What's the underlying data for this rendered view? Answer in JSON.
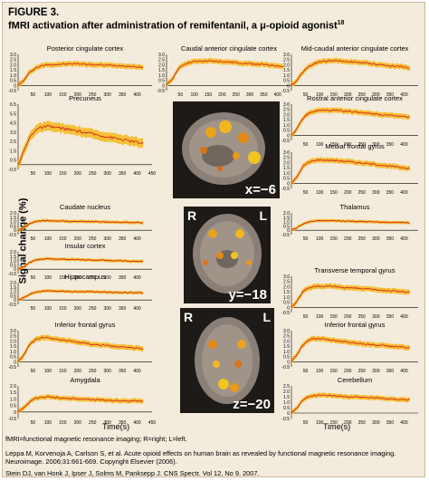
{
  "figure": {
    "label": "FIGURE 3.",
    "title": "fMRI activation after administration of remifentanil, a μ-opioid agonist",
    "title_superscript": "18"
  },
  "axis": {
    "ylabel": "Signal change (%)",
    "xlabel": "Time(s)"
  },
  "brain_slices": [
    {
      "coord": "x=−6",
      "left_label": "",
      "right_label": ""
    },
    {
      "coord": "y=−18",
      "left_label": "R",
      "right_label": "L"
    },
    {
      "coord": "z=−20",
      "left_label": "R",
      "right_label": "L"
    }
  ],
  "footer": {
    "abbrev": "fMRI=functional magnetic resonance imaging; R=right; L=left.",
    "citation1": "Leppa M, Korvenoja A, Carlson S, et al. Acute opioid effects on human brain as revealed by functional magnetic resonance imaging. Neuroimage. 2006;31:661-669. Copyright Elsevier (2006).",
    "citation2": "Stein DJ, van Honk J, Ipser J, Solms M, Panksepp J. CNS Spectr. Vol 12, No 9. 2007."
  },
  "colors": {
    "line": "#d42a1a",
    "band": "#f5b81c",
    "background": "#f3ebdc"
  },
  "chart_data": [
    {
      "type": "line",
      "title": "Posterior cingulate cortex",
      "xlim": [
        0,
        450
      ],
      "ylim": [
        -0.5,
        3.0
      ],
      "yticks": [
        "3.0",
        "2.5",
        "2.0",
        "1.5",
        "1.0",
        "0.5",
        "0",
        "-0.5"
      ],
      "xticks": [
        50,
        100,
        150,
        200,
        250,
        300,
        350,
        400
      ],
      "x": [
        0,
        20,
        40,
        60,
        80,
        100,
        150,
        200,
        250,
        300,
        350,
        400,
        420
      ],
      "y": [
        0.0,
        0.5,
        1.3,
        1.7,
        1.9,
        2.0,
        2.05,
        2.1,
        2.0,
        1.95,
        1.9,
        1.8,
        1.7
      ]
    },
    {
      "type": "line",
      "title": "Caudal anterior cingulate cortex",
      "xlim": [
        0,
        450
      ],
      "ylim": [
        -0.5,
        3.0
      ],
      "yticks": [
        "3.0",
        "2.5",
        "2.0",
        "1.5",
        "1.0",
        "0.5",
        "0",
        "-0.5"
      ],
      "xticks": [
        50,
        100,
        150,
        200,
        250,
        300,
        350,
        400
      ],
      "x": [
        0,
        20,
        40,
        60,
        80,
        100,
        150,
        200,
        250,
        300,
        350,
        400,
        420
      ],
      "y": [
        0.0,
        0.6,
        1.5,
        2.0,
        2.2,
        2.3,
        2.35,
        2.3,
        2.2,
        2.1,
        2.0,
        1.9,
        1.8
      ]
    },
    {
      "type": "line",
      "title": "Mid-caudal anterior cingulate cortex",
      "xlim": [
        0,
        450
      ],
      "ylim": [
        -0.5,
        3.0
      ],
      "yticks": [
        "3.0",
        "2.5",
        "2.0",
        "1.5",
        "1.0",
        "0.5",
        "0",
        "-0.5"
      ],
      "xticks": [
        50,
        100,
        150,
        200,
        250,
        300,
        350,
        400
      ],
      "x": [
        0,
        20,
        40,
        60,
        80,
        100,
        150,
        200,
        250,
        300,
        350,
        400,
        420
      ],
      "y": [
        0.0,
        0.5,
        1.3,
        1.8,
        2.1,
        2.3,
        2.4,
        2.3,
        2.2,
        2.05,
        1.9,
        1.8,
        1.6
      ]
    },
    {
      "type": "line",
      "title": "Precuneus",
      "xlim": [
        0,
        450
      ],
      "ylim": [
        -0.5,
        6.5
      ],
      "yticks": [
        "6.5",
        "6.0",
        "5.5",
        "5.0",
        "4.5",
        "4.0",
        "3.5",
        "3.0",
        "2.5",
        "2.0",
        "1.5",
        "1.0",
        "0.5",
        "0",
        "-0.5"
      ],
      "xticks": [
        50,
        100,
        150,
        200,
        250,
        300,
        350,
        400,
        450
      ],
      "x": [
        0,
        20,
        40,
        60,
        80,
        100,
        150,
        200,
        250,
        300,
        350,
        400,
        420
      ],
      "y": [
        0.0,
        1.5,
        3.0,
        3.8,
        4.0,
        4.1,
        3.9,
        3.6,
        3.3,
        3.0,
        2.7,
        2.4,
        2.3
      ]
    },
    {
      "type": "line",
      "title": "Rostral anterior cingulate cortex",
      "xlim": [
        0,
        450
      ],
      "ylim": [
        -0.5,
        3.0
      ],
      "yticks": [
        "3.0",
        "2.5",
        "2.0",
        "1.5",
        "1.0",
        "0.5",
        "0",
        "-0.5"
      ],
      "xticks": [
        50,
        100,
        150,
        200,
        250,
        300,
        350,
        400
      ],
      "x": [
        0,
        20,
        40,
        60,
        80,
        100,
        150,
        200,
        250,
        300,
        350,
        400,
        420
      ],
      "y": [
        0.0,
        0.6,
        1.6,
        2.1,
        2.3,
        2.4,
        2.4,
        2.3,
        2.2,
        2.05,
        1.9,
        1.8,
        1.7
      ]
    },
    {
      "type": "line",
      "title": "Medial frontal gyrus",
      "xlim": [
        0,
        450
      ],
      "ylim": [
        -0.5,
        3.0
      ],
      "yticks": [
        "3.0",
        "2.5",
        "2.0",
        "1.5",
        "1.0",
        "0.5",
        "0",
        "-0.5"
      ],
      "xticks": [
        50,
        100,
        150,
        200,
        250,
        300,
        350,
        400
      ],
      "x": [
        0,
        20,
        40,
        60,
        80,
        100,
        150,
        200,
        250,
        300,
        350,
        400,
        420
      ],
      "y": [
        0.0,
        0.6,
        1.6,
        2.0,
        2.2,
        2.25,
        2.2,
        2.1,
        1.95,
        1.8,
        1.65,
        1.5,
        1.4
      ]
    },
    {
      "type": "line",
      "title": "Caudate nucleus",
      "xlim": [
        0,
        450
      ],
      "ylim": [
        -0.5,
        2.0
      ],
      "yticks": [
        "2.0",
        "1.5",
        "1.0",
        "0.5",
        "0",
        "-0.5"
      ],
      "xticks": [
        50,
        100,
        150,
        200,
        250,
        300,
        350,
        400
      ],
      "x": [
        0,
        20,
        40,
        60,
        80,
        100,
        150,
        200,
        250,
        300,
        350,
        400,
        420
      ],
      "y": [
        0.0,
        0.3,
        0.8,
        1.0,
        1.1,
        1.1,
        1.05,
        1.0,
        1.0,
        0.95,
        0.9,
        0.9,
        0.85
      ]
    },
    {
      "type": "line",
      "title": "Thalamus",
      "xlim": [
        0,
        450
      ],
      "ylim": [
        -0.5,
        2.0
      ],
      "yticks": [
        "2.0",
        "1.5",
        "1.0",
        "0.5",
        "0",
        "-0.5"
      ],
      "xticks": [
        50,
        100,
        150,
        200,
        250,
        300,
        350,
        400
      ],
      "x": [
        0,
        20,
        40,
        60,
        80,
        100,
        150,
        200,
        250,
        300,
        350,
        400,
        420
      ],
      "y": [
        0.0,
        0.3,
        0.7,
        0.95,
        1.05,
        1.1,
        1.1,
        1.05,
        1.0,
        0.95,
        0.9,
        0.9,
        0.85
      ]
    },
    {
      "type": "line",
      "title": "Insular cortex",
      "xlim": [
        0,
        450
      ],
      "ylim": [
        -0.5,
        2.0
      ],
      "yticks": [
        "2.0",
        "1.5",
        "1.0",
        "0.5",
        "0",
        "-0.5"
      ],
      "xticks": [
        50,
        100,
        150,
        200,
        250,
        300,
        350,
        400
      ],
      "x": [
        0,
        20,
        40,
        60,
        80,
        100,
        150,
        200,
        250,
        300,
        350,
        400,
        420
      ],
      "y": [
        0.0,
        0.3,
        0.8,
        1.05,
        1.15,
        1.2,
        1.15,
        1.1,
        1.05,
        1.0,
        0.95,
        0.9,
        0.9
      ]
    },
    {
      "type": "line",
      "title": "Hippocampus",
      "xlim": [
        0,
        450
      ],
      "ylim": [
        -0.5,
        2.0
      ],
      "yticks": [
        "2.0",
        "1.5",
        "1.0",
        "0.5",
        "0",
        "-0.5"
      ],
      "xticks": [
        50,
        100,
        150,
        200,
        250,
        300,
        350,
        400
      ],
      "x": [
        0,
        20,
        40,
        60,
        80,
        100,
        150,
        200,
        250,
        300,
        350,
        400,
        420
      ],
      "y": [
        0.0,
        0.3,
        0.7,
        0.9,
        1.0,
        1.05,
        1.0,
        0.95,
        0.95,
        0.9,
        0.85,
        0.85,
        0.8
      ]
    },
    {
      "type": "line",
      "title": "Transverse temporal gyrus",
      "xlim": [
        0,
        450
      ],
      "ylim": [
        -0.5,
        3.0
      ],
      "yticks": [
        "3.0",
        "2.5",
        "2.0",
        "1.5",
        "1.0",
        "0.5",
        "0",
        "-0.5"
      ],
      "xticks": [
        50,
        100,
        150,
        200,
        250,
        300,
        350,
        400
      ],
      "x": [
        0,
        20,
        40,
        60,
        80,
        100,
        150,
        200,
        250,
        300,
        350,
        400,
        420
      ],
      "y": [
        0.0,
        0.6,
        1.5,
        1.9,
        2.0,
        2.05,
        2.0,
        1.9,
        1.8,
        1.7,
        1.6,
        1.5,
        1.45
      ]
    },
    {
      "type": "line",
      "title": "Inferior frontal gyrus",
      "xlim": [
        0,
        450
      ],
      "ylim": [
        -0.5,
        3.0
      ],
      "yticks": [
        "3.0",
        "2.5",
        "2.0",
        "1.5",
        "1.0",
        "0.5",
        "0",
        "-0.5"
      ],
      "xticks": [
        50,
        100,
        150,
        200,
        250,
        300,
        350,
        400
      ],
      "x": [
        0,
        20,
        40,
        60,
        80,
        100,
        150,
        200,
        250,
        300,
        350,
        400,
        420
      ],
      "y": [
        0.0,
        0.7,
        1.7,
        2.2,
        2.35,
        2.3,
        2.1,
        1.9,
        1.7,
        1.55,
        1.4,
        1.3,
        1.2
      ]
    },
    {
      "type": "line",
      "title": "Inferior frontal gyrus",
      "xlim": [
        0,
        450
      ],
      "ylim": [
        -0.5,
        3.0
      ],
      "yticks": [
        "3.0",
        "2.5",
        "2.0",
        "1.5",
        "1.0",
        "0.5",
        "0",
        "-0.5"
      ],
      "xticks": [
        50,
        100,
        150,
        200,
        250,
        300,
        350,
        400
      ],
      "x": [
        0,
        20,
        40,
        60,
        80,
        100,
        150,
        200,
        250,
        300,
        350,
        400,
        420
      ],
      "y": [
        0.0,
        0.7,
        1.6,
        2.1,
        2.25,
        2.2,
        2.05,
        1.9,
        1.75,
        1.6,
        1.5,
        1.4,
        1.3
      ]
    },
    {
      "type": "line",
      "title": "Amygdala",
      "xlim": [
        0,
        450
      ],
      "ylim": [
        -0.5,
        2.0
      ],
      "yticks": [
        "2.0",
        "1.5",
        "1.0",
        "0.5",
        "0",
        "-0.5"
      ],
      "xticks": [
        50,
        100,
        150,
        200,
        250,
        300,
        350,
        400,
        450
      ],
      "x": [
        0,
        20,
        40,
        60,
        80,
        100,
        150,
        200,
        250,
        300,
        350,
        400,
        420
      ],
      "y": [
        0.0,
        0.3,
        0.8,
        1.05,
        1.1,
        1.15,
        1.05,
        1.0,
        0.95,
        0.9,
        0.85,
        0.85,
        0.8
      ]
    },
    {
      "type": "line",
      "title": "Cerebellum",
      "xlim": [
        0,
        450
      ],
      "ylim": [
        -0.5,
        2.5
      ],
      "yticks": [
        "2.5",
        "2.0",
        "1.5",
        "1.0",
        "0.5",
        "0",
        "-0.5"
      ],
      "xticks": [
        50,
        100,
        150,
        200,
        250,
        300,
        350,
        400
      ],
      "x": [
        0,
        20,
        40,
        60,
        80,
        100,
        150,
        200,
        250,
        300,
        350,
        400,
        420
      ],
      "y": [
        0.0,
        0.5,
        1.2,
        1.5,
        1.6,
        1.65,
        1.6,
        1.5,
        1.45,
        1.4,
        1.3,
        1.25,
        1.2
      ]
    }
  ]
}
